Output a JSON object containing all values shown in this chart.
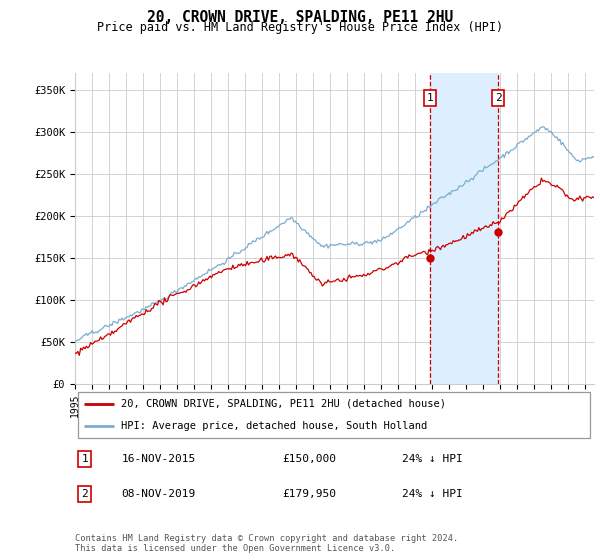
{
  "title": "20, CROWN DRIVE, SPALDING, PE11 2HU",
  "subtitle": "Price paid vs. HM Land Registry's House Price Index (HPI)",
  "xlim_start": 1995.0,
  "xlim_end": 2025.5,
  "ylim": [
    0,
    370000
  ],
  "yticks": [
    0,
    50000,
    100000,
    150000,
    200000,
    250000,
    300000,
    350000
  ],
  "ytick_labels": [
    "£0",
    "£50K",
    "£100K",
    "£150K",
    "£200K",
    "£250K",
    "£300K",
    "£350K"
  ],
  "transaction1_x": 2015.88,
  "transaction1_y": 150000,
  "transaction2_x": 2019.86,
  "transaction2_y": 179950,
  "hpi_line_color": "#7aadcf",
  "price_line_color": "#cc0000",
  "shaded_region_color": "#ddeeff",
  "vline_color": "#cc0000",
  "legend_label1": "20, CROWN DRIVE, SPALDING, PE11 2HU (detached house)",
  "legend_label2": "HPI: Average price, detached house, South Holland",
  "note1_date": "16-NOV-2015",
  "note1_price": "£150,000",
  "note1_hpi": "24% ↓ HPI",
  "note2_date": "08-NOV-2019",
  "note2_price": "£179,950",
  "note2_hpi": "24% ↓ HPI",
  "footer": "Contains HM Land Registry data © Crown copyright and database right 2024.\nThis data is licensed under the Open Government Licence v3.0."
}
